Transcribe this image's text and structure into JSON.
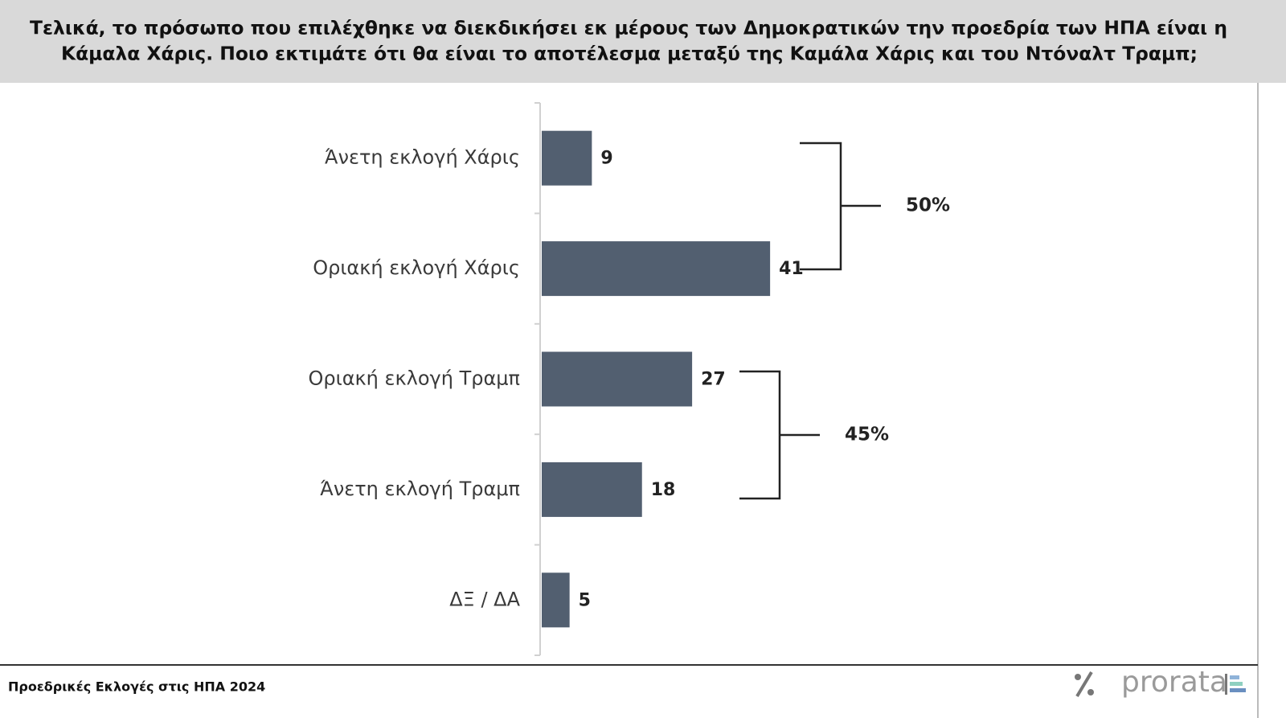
{
  "chart_data": {
    "type": "bar",
    "orientation": "horizontal",
    "title": [
      "Τελικά, το πρόσωπο που επιλέχθηκε να διεκδικήσει εκ μέρους των Δημοκρατικών την προεδρία των ΗΠΑ είναι η",
      "Κάμαλα Χάρις. Ποιο εκτιμάτε ότι θα είναι το αποτέλεσμα μεταξύ της Καμάλα Χάρις και του Ντόναλτ Τραμπ;"
    ],
    "categories": [
      "Άνετη εκλογή Χάρις",
      "Οριακή εκλογή Χάρις",
      "Οριακή εκλογή Τραμπ",
      "Άνετη εκλογή Τραμπ",
      "ΔΞ / ΔΑ"
    ],
    "values": [
      9,
      41,
      27,
      18,
      5
    ],
    "color": "#525f70",
    "annotations": [
      "50%",
      "45%"
    ],
    "footer": "Προεδρικές Εκλογές στις ΗΠΑ 2024",
    "logo": "prorata"
  }
}
